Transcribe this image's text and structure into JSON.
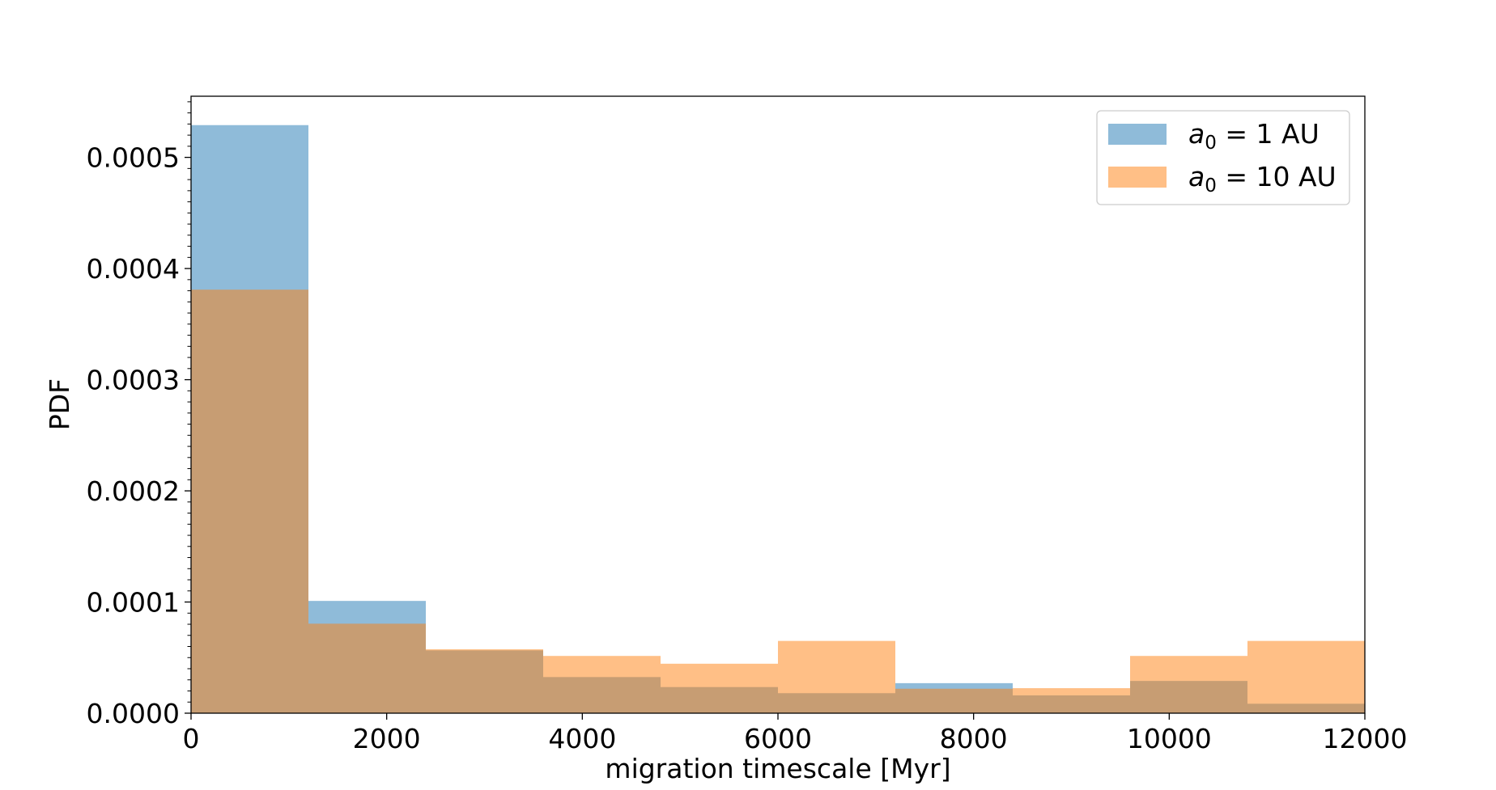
{
  "chart_data": {
    "type": "histogram",
    "xlabel": "migration timescale [Myr]",
    "ylabel": "PDF",
    "xlim": [
      0,
      12000
    ],
    "ylim": [
      0,
      0.000555
    ],
    "x_ticks": [
      0,
      2000,
      4000,
      6000,
      8000,
      10000,
      12000
    ],
    "x_tick_labels": [
      "0",
      "2000",
      "4000",
      "6000",
      "8000",
      "10000",
      "12000"
    ],
    "y_ticks": [
      0,
      0.0001,
      0.0002,
      0.0003,
      0.0004,
      0.0005
    ],
    "y_tick_labels": [
      "0.0000",
      "0.0001",
      "0.0002",
      "0.0003",
      "0.0004",
      "0.0005"
    ],
    "y_minor_ticks_per_major": 10,
    "grid": false,
    "legend_position": "top-right",
    "bin_edges": [
      0,
      1200,
      2400,
      3600,
      4800,
      6000,
      7200,
      8400,
      9600,
      10800,
      12000
    ],
    "series": [
      {
        "name": "a_0 = 1 AU",
        "legend_main": "a",
        "legend_sub": "0",
        "legend_rest": " = 1 AU",
        "color": "#1f77b4",
        "opacity": 0.5,
        "values": [
          0.000529,
          0.000101,
          5.65e-05,
          3.25e-05,
          2.35e-05,
          1.8e-05,
          2.7e-05,
          1.6e-05,
          2.9e-05,
          8.5e-06
        ]
      },
      {
        "name": "a_0 = 10 AU",
        "legend_main": "a",
        "legend_sub": "0",
        "legend_rest": " = 10 AU",
        "color": "#ff7f0e",
        "opacity": 0.5,
        "values": [
          0.000381,
          8.05e-05,
          5.75e-05,
          5.15e-05,
          4.45e-05,
          6.5e-05,
          2.2e-05,
          2.25e-05,
          5.15e-05,
          6.5e-05
        ]
      }
    ]
  }
}
